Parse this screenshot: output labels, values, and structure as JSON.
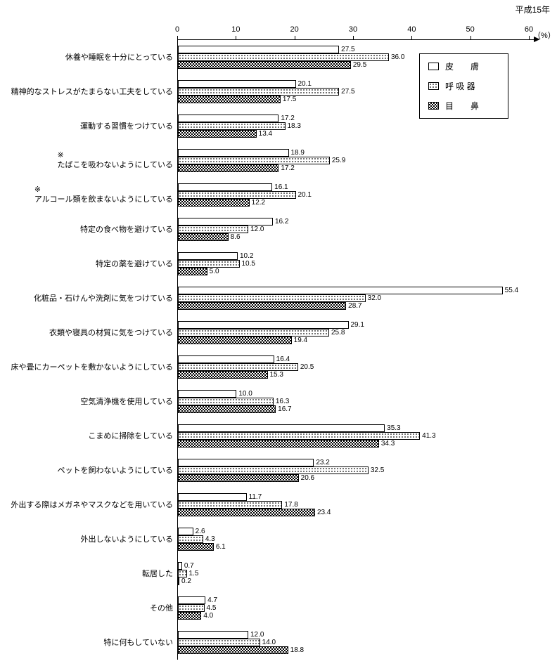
{
  "title": "平成15年",
  "axis": {
    "ticks": [
      0,
      10,
      20,
      30,
      40,
      50,
      60
    ],
    "unit": "（%）",
    "max": 60
  },
  "legend": {
    "items": [
      {
        "label": "皮　　膚",
        "pattern": "plain"
      },
      {
        "label": "呼 吸 器",
        "pattern": "dots"
      },
      {
        "label": "目　　鼻",
        "pattern": "check"
      }
    ]
  },
  "chart_data": {
    "type": "bar",
    "orientation": "horizontal",
    "title": "平成15年",
    "xlabel": "（%）",
    "xlim": [
      0,
      60
    ],
    "grid": false,
    "legend_position": "top-right",
    "categories": [
      "休養や睡眠を十分にとっている",
      "精神的なストレスがたまらない工夫をしている",
      "運動する習慣をつけている",
      "たばこを吸わないようにしている",
      "アルコール類を飲まないようにしている",
      "特定の食べ物を避けている",
      "特定の薬を避けている",
      "化粧品・石けんや洗剤に気をつけている",
      "衣類や寝具の材質に気をつけている",
      "床や畳にカーペットを敷かないようにしている",
      "空気清浄機を使用している",
      "こまめに掃除をしている",
      "ペットを飼わないようにしている",
      "外出する際はメガネやマスクなどを用いている",
      "外出しないようにしている",
      "転居した",
      "その他",
      "特に何もしていない"
    ],
    "notes": [
      "",
      "",
      "",
      "※",
      "※",
      "",
      "",
      "",
      "",
      "",
      "",
      "",
      "",
      "",
      "",
      "",
      "",
      ""
    ],
    "series": [
      {
        "name": "皮膚",
        "pattern": "plain",
        "values": [
          27.5,
          20.1,
          17.2,
          18.9,
          16.1,
          16.2,
          10.2,
          55.4,
          29.1,
          16.4,
          10.0,
          35.3,
          23.2,
          11.7,
          2.6,
          0.7,
          4.7,
          12.0
        ]
      },
      {
        "name": "呼吸器",
        "pattern": "dots",
        "values": [
          36.0,
          27.5,
          18.3,
          25.9,
          20.1,
          12.0,
          10.5,
          32.0,
          25.8,
          20.5,
          16.3,
          41.3,
          32.5,
          17.8,
          4.3,
          1.5,
          4.5,
          14.0
        ]
      },
      {
        "name": "目・鼻",
        "pattern": "check",
        "values": [
          29.5,
          17.5,
          13.4,
          17.2,
          12.2,
          8.6,
          5.0,
          28.7,
          19.4,
          15.3,
          16.7,
          34.3,
          20.6,
          23.4,
          6.1,
          0.2,
          4.0,
          18.8
        ]
      }
    ]
  }
}
